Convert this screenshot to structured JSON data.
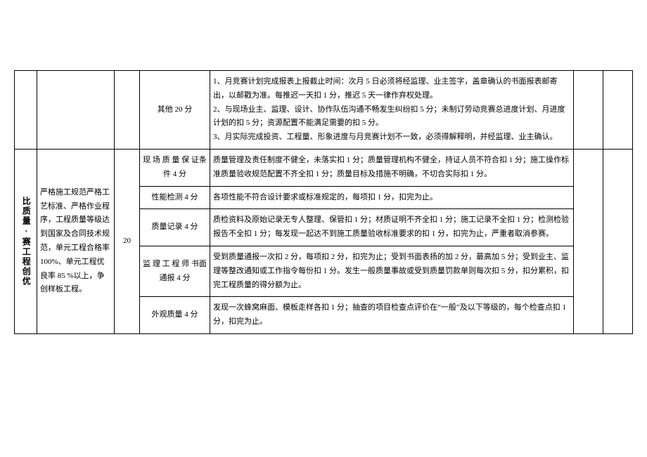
{
  "section1": {
    "sub_label": "其他 20 分",
    "body": "1、月竞赛计划完成报表上报截止时间：次月 5 日必须将经监理、业主签字，盖章确认的书面报表邮寄出，以邮戳为准。每推迟一天扣 1 分，推迟 5 天一律作弃权处理。\n2、与现场业主、监理、设计、协作队伍沟通不畅发生纠纷扣 5 分；未制订劳动竞赛总进度计划、月进度计划的扣 5 分；资源配置不能满足需要的扣 5 分。\n3、月实际完成投资、工程量、形象进度与月竞赛计划不一致，必须得解释明，并经监理、业主确认。"
  },
  "section2": {
    "cat_label": "比质量·赛工程创优",
    "desc": "严格施工规范严格工艺标准、严格作业程序，工程质量等级达到国家及合同技术规范，单元工程合格率 100%、单元工程优良率 85 %以上，争创样板工程。",
    "score": "20",
    "rows": [
      {
        "sub": "现 场 质 量 保 证条件 4 分",
        "body": "质量管理及责任制度不健全，未落实扣 1 分；质量管理机构不健全，持证人员不符合扣 1 分；施工操作标准质量验收规范配置不齐全扣 1 分；质量目标及措施不明确，不切合实际扣 1 分。"
      },
      {
        "sub": "性能检测 4 分",
        "body": "各项性能不符合设计要求或标准规定的，每项扣 1 分，扣完为止。"
      },
      {
        "sub": "质量记录 4 分",
        "body": "质检资料及原始记录无专人整理、保管扣 1 分；材质证明不齐全扣 1 分；施工记录不全扣 1 分；检测检验报告不全扣 1 分；每发现一起达不到施工质量验收标准要求的扣 1 分，扣完为止，严重者取消参赛。"
      },
      {
        "sub": "监 理 工 程 师 书面通报 4 分",
        "body": "受到质量通报一次扣 2 分，每项扣 2 分，扣完为止；受到书面表扬的加 2 分，最高加 5 分；受到业主、监理等整改通知或工作指令每份扣 1 分。发生一般质量事故或受到质量罚款单则每次扣 5 分，扣分累积，扣完工程质量的得分额为止。"
      },
      {
        "sub": "外观质量 4 分",
        "body": "发现一次蜂窝麻面、模板走样各扣 1 分；抽查的项目检查点评价在“一般”及以下等级的，每个检查点扣 1 分，扣完为止。"
      }
    ]
  }
}
